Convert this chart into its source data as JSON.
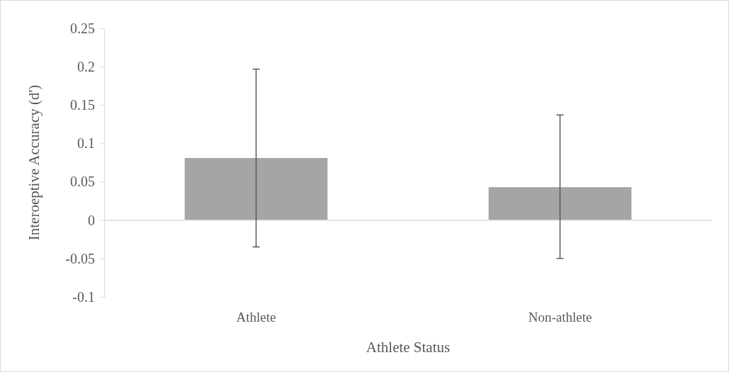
{
  "chart_data": {
    "type": "bar",
    "xlabel": "Athlete Status",
    "ylabel": "Interoeptive Accuracy (d')",
    "categories": [
      "Athlete",
      "Non-athlete"
    ],
    "values": [
      0.081,
      0.043
    ],
    "errors": [
      [
        -0.035,
        0.197
      ],
      [
        -0.05,
        0.137
      ]
    ],
    "color": "#a5a5a5",
    "ylim": [
      -0.1,
      0.25
    ],
    "yticks": [
      -0.1,
      -0.05,
      0,
      0.05,
      0.1,
      0.15,
      0.2,
      0.25
    ]
  }
}
